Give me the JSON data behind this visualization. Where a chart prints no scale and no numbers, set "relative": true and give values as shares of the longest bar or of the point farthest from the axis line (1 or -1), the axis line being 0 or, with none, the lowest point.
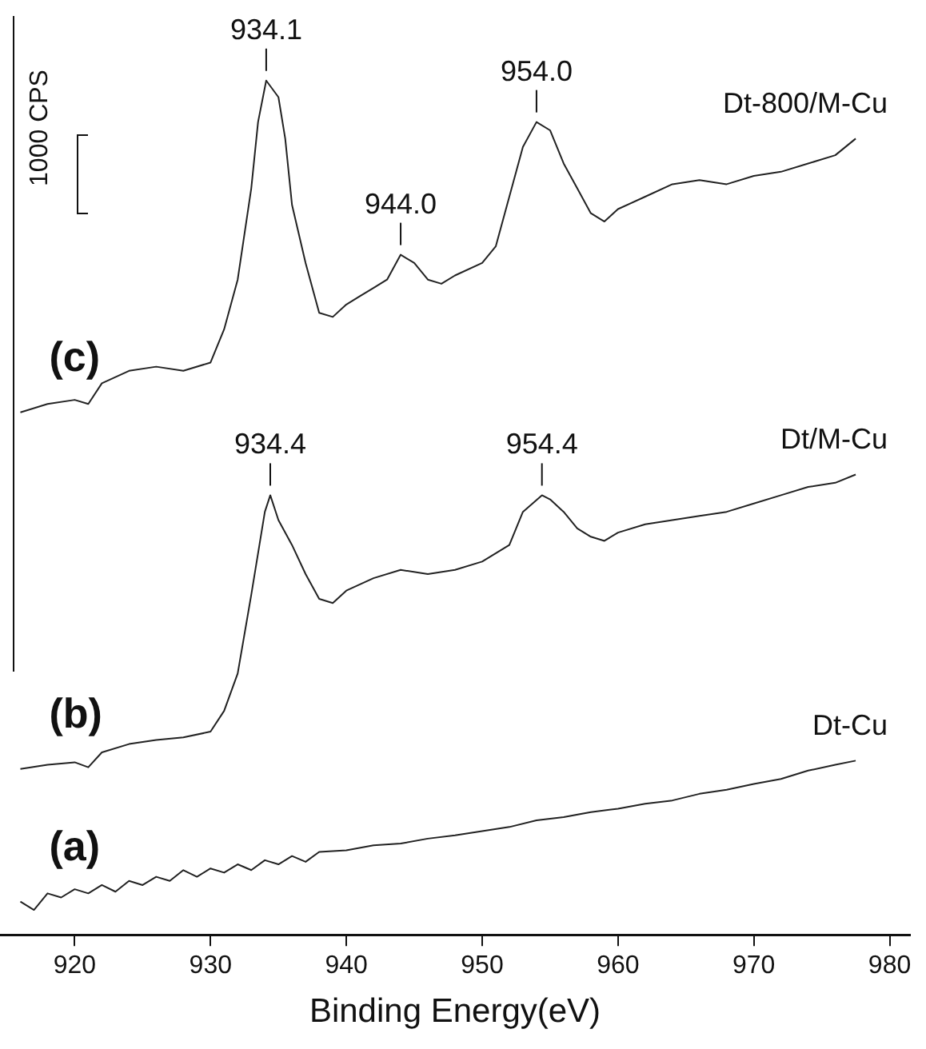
{
  "chart_data": {
    "type": "line",
    "xlabel": "Binding Energy(eV)",
    "relative": true,
    "legend": false,
    "grid": false,
    "marker": "none",
    "line_style": "solid",
    "tick_labels": "x",
    "xlim": [
      914.5,
      981.5
    ],
    "xticks": [
      920,
      930,
      940,
      950,
      960,
      970,
      980
    ],
    "series": [
      {
        "name": "Dt-Cu",
        "color": "#222222",
        "x": [
          916,
          917,
          918,
          919,
          920,
          921,
          922,
          923,
          924,
          925,
          926,
          927,
          928,
          929,
          930,
          931,
          932,
          933,
          934,
          935,
          936,
          937,
          938,
          940,
          942,
          944,
          946,
          948,
          950,
          952,
          954,
          956,
          958,
          960,
          962,
          964,
          966,
          968,
          970,
          972,
          974,
          976,
          977.5
        ],
        "values": [
          0.01,
          0,
          0.02,
          0.015,
          0.025,
          0.02,
          0.03,
          0.022,
          0.035,
          0.03,
          0.04,
          0.035,
          0.048,
          0.04,
          0.05,
          0.045,
          0.055,
          0.048,
          0.06,
          0.055,
          0.065,
          0.058,
          0.07,
          0.072,
          0.078,
          0.08,
          0.086,
          0.09,
          0.095,
          0.1,
          0.108,
          0.112,
          0.118,
          0.122,
          0.128,
          0.132,
          0.14,
          0.145,
          0.152,
          0.158,
          0.168,
          0.175,
          0.18
        ]
      },
      {
        "name": "Dt/M-Cu",
        "color": "#222222",
        "x": [
          916,
          918,
          920,
          921,
          922,
          924,
          926,
          928,
          930,
          931,
          932,
          933,
          934,
          934.4,
          935,
          936,
          937,
          938,
          939,
          940,
          942,
          944,
          946,
          948,
          950,
          952,
          953,
          954.4,
          955,
          956,
          957,
          958,
          959,
          960,
          962,
          964,
          966,
          968,
          970,
          972,
          974,
          976,
          977.5
        ],
        "values": [
          0.17,
          0.175,
          0.178,
          0.172,
          0.19,
          0.2,
          0.205,
          0.208,
          0.215,
          0.24,
          0.285,
          0.38,
          0.48,
          0.5,
          0.47,
          0.44,
          0.405,
          0.375,
          0.37,
          0.385,
          0.4,
          0.41,
          0.405,
          0.41,
          0.42,
          0.44,
          0.48,
          0.5,
          0.495,
          0.48,
          0.46,
          0.45,
          0.445,
          0.455,
          0.465,
          0.47,
          0.475,
          0.48,
          0.49,
          0.5,
          0.51,
          0.515,
          0.525
        ]
      },
      {
        "name": "Dt-800/M-Cu",
        "color": "#222222",
        "x": [
          916,
          918,
          920,
          921,
          922,
          924,
          926,
          928,
          930,
          931,
          932,
          933,
          933.5,
          934.1,
          935,
          935.5,
          936,
          937,
          938,
          939,
          940,
          941,
          942,
          943,
          944,
          945,
          946,
          947,
          948,
          950,
          951,
          952,
          953,
          954,
          955,
          956,
          957,
          958,
          959,
          960,
          962,
          964,
          966,
          968,
          970,
          972,
          974,
          976,
          977.5
        ],
        "values": [
          0.6,
          0.61,
          0.615,
          0.61,
          0.635,
          0.65,
          0.655,
          0.65,
          0.66,
          0.7,
          0.76,
          0.87,
          0.95,
          1,
          0.98,
          0.93,
          0.85,
          0.78,
          0.72,
          0.715,
          0.73,
          0.74,
          0.75,
          0.76,
          0.79,
          0.78,
          0.76,
          0.755,
          0.765,
          0.78,
          0.8,
          0.86,
          0.92,
          0.95,
          0.94,
          0.9,
          0.87,
          0.84,
          0.83,
          0.845,
          0.86,
          0.875,
          0.88,
          0.875,
          0.885,
          0.89,
          0.9,
          0.91,
          0.93
        ]
      }
    ],
    "annotations": [
      "(a)",
      "(b)",
      "(c)",
      "1000 CPS",
      {
        "text": "934.1",
        "x": 934.1,
        "y": 1
      },
      {
        "text": "944.0",
        "x": 944,
        "y": 0.79
      },
      {
        "text": "954.0",
        "x": 954,
        "y": 0.95
      },
      {
        "text": "934.4",
        "x": 934.4,
        "y": 0.5
      },
      {
        "text": "954.4",
        "x": 954.4,
        "y": 0.5
      }
    ]
  }
}
